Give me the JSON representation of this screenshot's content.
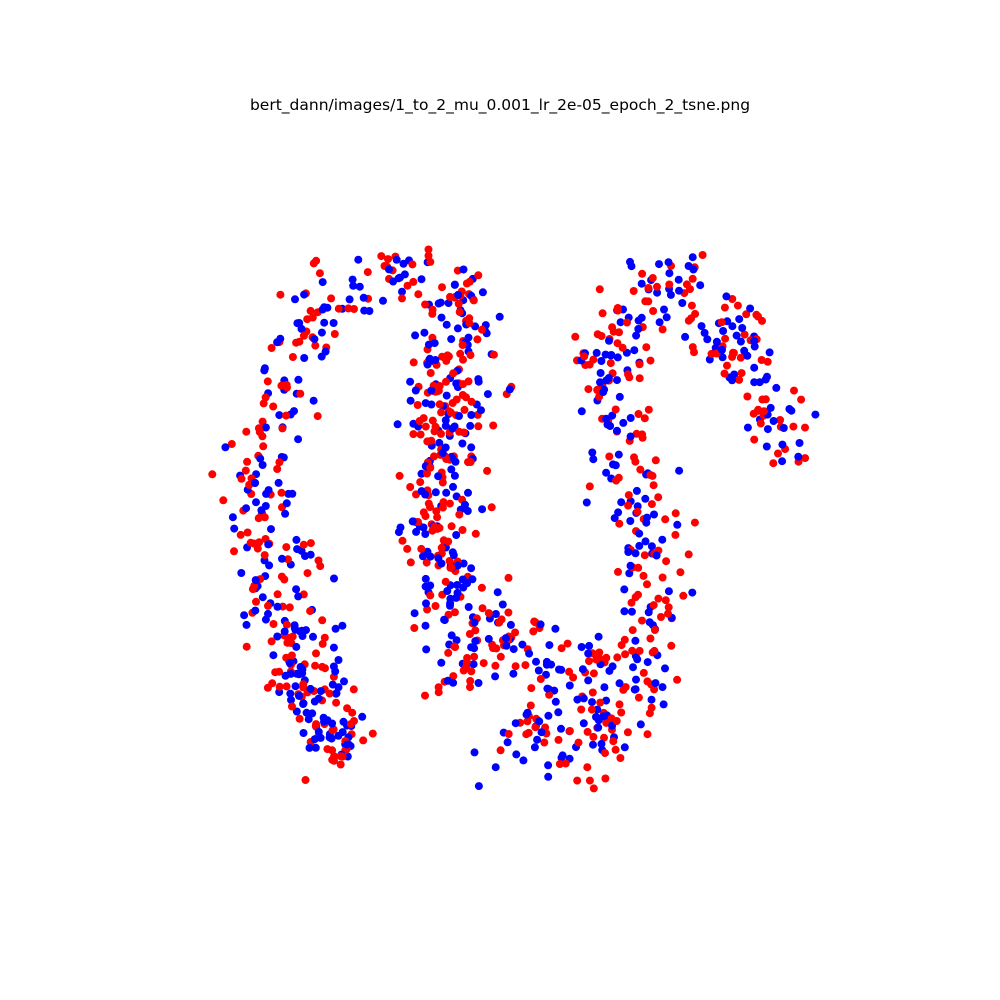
{
  "figure": {
    "title": "bert_dann/images/1_to_2_mu_0.001_lr_2e-05_epoch_2_tsne.png"
  },
  "chart_data": {
    "type": "scatter",
    "title": "bert_dann/images/1_to_2_mu_0.001_lr_2e-05_epoch_2_tsne.png",
    "xlabel": "",
    "ylabel": "",
    "axes_visible": false,
    "grid": false,
    "legend": "none",
    "xlim": [
      0,
      100
    ],
    "ylim": [
      0,
      100
    ],
    "series": [
      {
        "color": "#ff0000",
        "marker_radius": 4
      },
      {
        "color": "#0000ff",
        "marker_radius": 4
      }
    ],
    "shape_paths": [
      {
        "width": 9,
        "points": [
          [
            28,
            85
          ],
          [
            26,
            81
          ],
          [
            24,
            77
          ],
          [
            22,
            73
          ],
          [
            20,
            69
          ],
          [
            19,
            65
          ],
          [
            18,
            61
          ],
          [
            17,
            57
          ],
          [
            17,
            53
          ],
          [
            17,
            49
          ],
          [
            18,
            45
          ],
          [
            19,
            41
          ],
          [
            20,
            37
          ],
          [
            21,
            33
          ],
          [
            23,
            29
          ],
          [
            25,
            26
          ],
          [
            26,
            24
          ]
        ]
      },
      {
        "width": 8,
        "points": [
          [
            26,
            24
          ],
          [
            28,
            22
          ],
          [
            31,
            21
          ],
          [
            33,
            20
          ],
          [
            35,
            19
          ],
          [
            37,
            20
          ],
          [
            39,
            21
          ]
        ]
      },
      {
        "width": 8,
        "points": [
          [
            29,
            84
          ],
          [
            28,
            80
          ],
          [
            27,
            77
          ],
          [
            26,
            74
          ],
          [
            25,
            71
          ],
          [
            24,
            68
          ],
          [
            23,
            65
          ],
          [
            22,
            62
          ]
        ]
      },
      {
        "width": 5,
        "points": [
          [
            20,
            76
          ],
          [
            21,
            74
          ],
          [
            22,
            72
          ]
        ]
      },
      {
        "width": 5,
        "points": [
          [
            24,
            61
          ],
          [
            24,
            58
          ],
          [
            23,
            56
          ]
        ]
      },
      {
        "width": 10,
        "points": [
          [
            43,
            21
          ],
          [
            44,
            24
          ],
          [
            44,
            28
          ],
          [
            44,
            32
          ],
          [
            43,
            36
          ],
          [
            42,
            40
          ],
          [
            41,
            44
          ],
          [
            41,
            48
          ],
          [
            41,
            52
          ],
          [
            41,
            56
          ],
          [
            41,
            60
          ],
          [
            42,
            64
          ],
          [
            42,
            68
          ],
          [
            43,
            72
          ],
          [
            44,
            75
          ]
        ]
      },
      {
        "width": 8,
        "points": [
          [
            38,
            27
          ],
          [
            40,
            29
          ],
          [
            41,
            33
          ],
          [
            41,
            37
          ],
          [
            41,
            41
          ],
          [
            40,
            45
          ],
          [
            40,
            49
          ],
          [
            40,
            53
          ],
          [
            40,
            57
          ],
          [
            41,
            61
          ],
          [
            42,
            65
          ]
        ]
      },
      {
        "width": 8,
        "points": [
          [
            42,
            25
          ],
          [
            43,
            23
          ],
          [
            45,
            23
          ]
        ]
      },
      {
        "width": 9,
        "points": [
          [
            44,
            66
          ],
          [
            47,
            66
          ],
          [
            50,
            67
          ],
          [
            52,
            70
          ],
          [
            54,
            72
          ],
          [
            56,
            74
          ],
          [
            58,
            76
          ],
          [
            60,
            76
          ]
        ]
      },
      {
        "width": 12,
        "points": [
          [
            49,
            79
          ],
          [
            51,
            81
          ],
          [
            53,
            83
          ],
          [
            55,
            82
          ],
          [
            57,
            81
          ],
          [
            60,
            80
          ],
          [
            63,
            79
          ],
          [
            65,
            77
          ]
        ]
      },
      {
        "width": 10,
        "points": [
          [
            65,
            77
          ],
          [
            66,
            74
          ],
          [
            67,
            71
          ],
          [
            68,
            67
          ],
          [
            68,
            63
          ],
          [
            68,
            59
          ],
          [
            67,
            55
          ],
          [
            66,
            51
          ],
          [
            65,
            47
          ],
          [
            64,
            43
          ],
          [
            63,
            40
          ]
        ]
      },
      {
        "width": 6,
        "points": [
          [
            61,
            68
          ],
          [
            63,
            70
          ],
          [
            64,
            72
          ]
        ]
      },
      {
        "width": 9,
        "points": [
          [
            63,
            40
          ],
          [
            62,
            37
          ],
          [
            61,
            34
          ],
          [
            62,
            31
          ],
          [
            63,
            28
          ],
          [
            64,
            26
          ],
          [
            65,
            24
          ],
          [
            67,
            23
          ],
          [
            69,
            22
          ],
          [
            71,
            22
          ],
          [
            73,
            23
          ],
          [
            75,
            24
          ],
          [
            77,
            26
          ],
          [
            79,
            29
          ],
          [
            81,
            32
          ],
          [
            82,
            35
          ],
          [
            83,
            38
          ],
          [
            84,
            41
          ],
          [
            85,
            43
          ],
          [
            86,
            46
          ]
        ]
      },
      {
        "width": 7,
        "points": [
          [
            74,
            29
          ],
          [
            76,
            30
          ],
          [
            78,
            30
          ],
          [
            80,
            31
          ]
        ]
      },
      {
        "width": 6,
        "points": [
          [
            61,
            37
          ],
          [
            62,
            35
          ],
          [
            63,
            33
          ],
          [
            64,
            31
          ]
        ]
      }
    ]
  }
}
